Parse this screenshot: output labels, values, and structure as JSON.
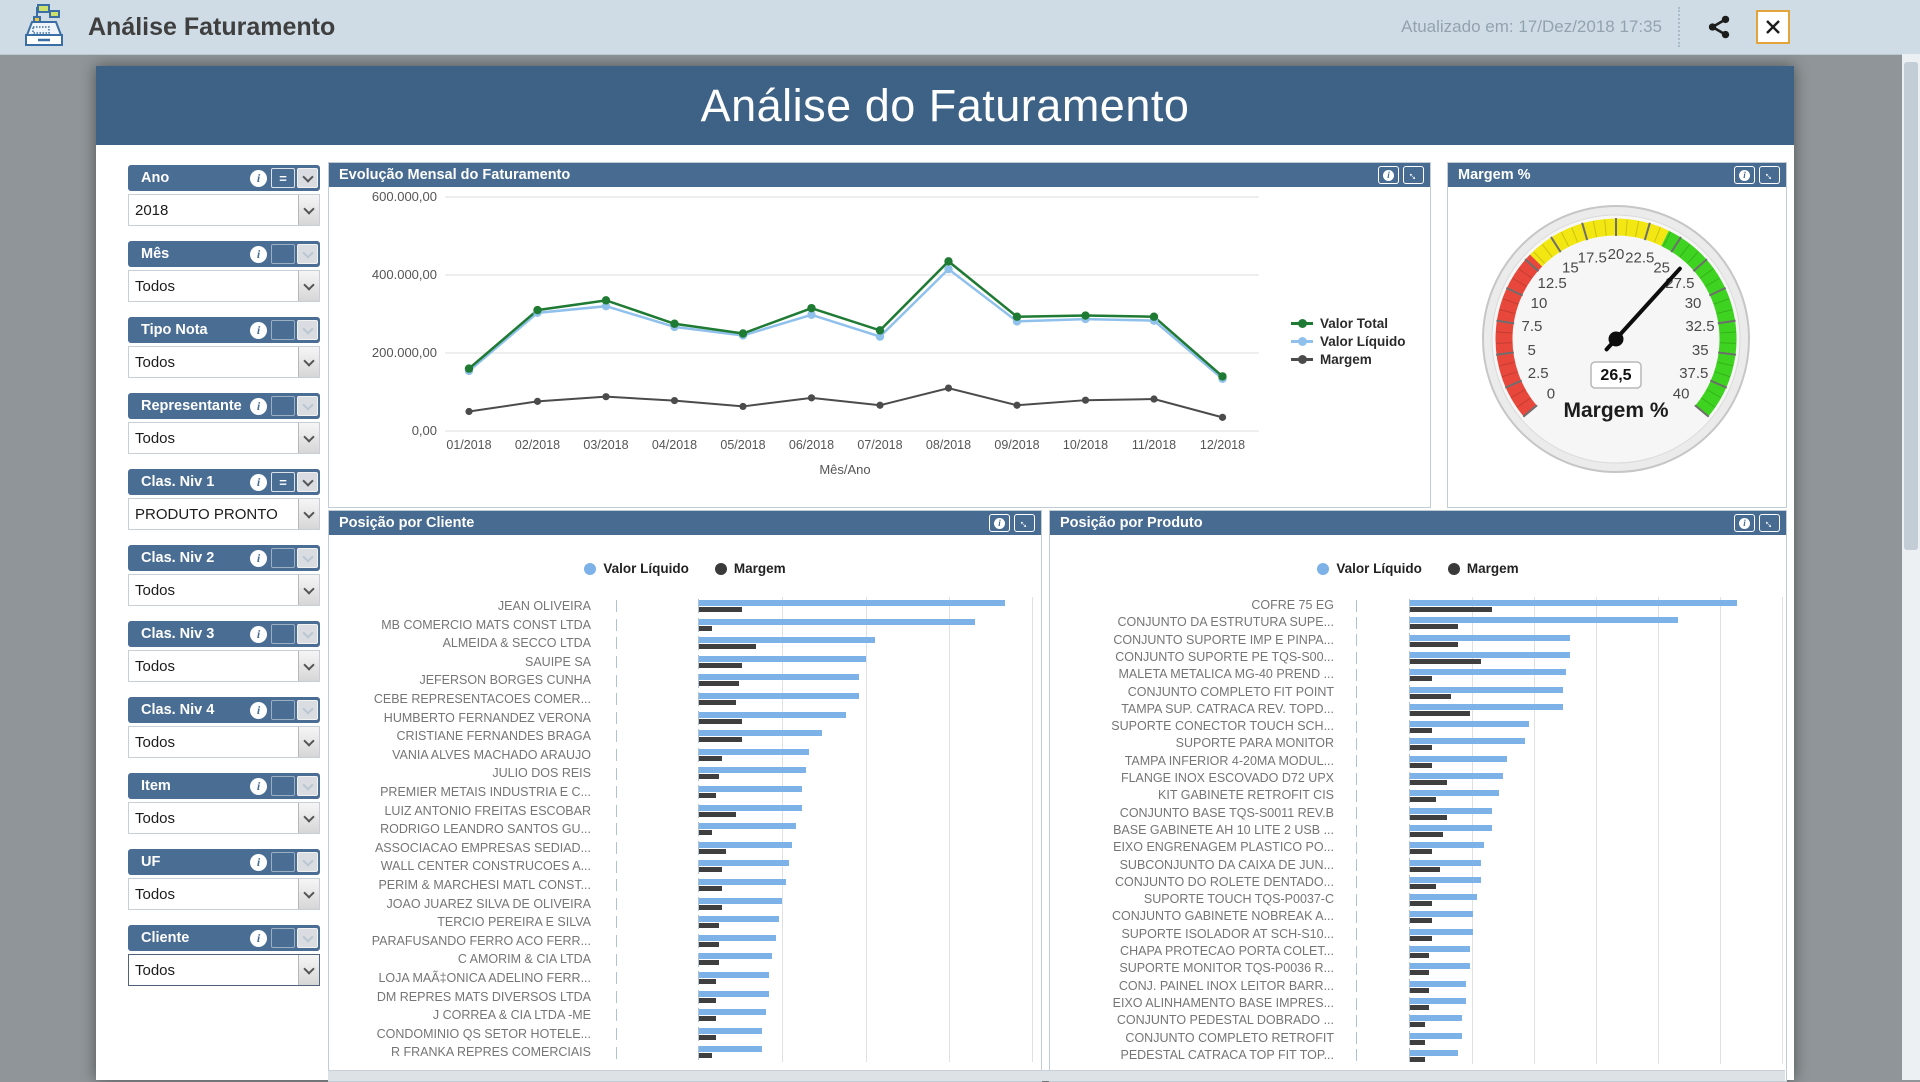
{
  "topbar": {
    "title": "Análise Faturamento",
    "updated": "Atualizado em: 17/Dez/2018 17:35",
    "icons": [
      "cash-register-icon",
      "share-icon",
      "close-icon"
    ]
  },
  "page": {
    "title": "Análise do Faturamento"
  },
  "filters": [
    {
      "label": "Ano",
      "value": "2018",
      "operator": "=",
      "focused": false
    },
    {
      "label": "Mês",
      "value": "Todos",
      "operator": "",
      "focused": false
    },
    {
      "label": "Tipo Nota",
      "value": "Todos",
      "operator": "",
      "focused": false
    },
    {
      "label": "Representante",
      "value": "Todos",
      "operator": "",
      "focused": false
    },
    {
      "label": "Clas. Niv 1",
      "value": "PRODUTO PRONTO",
      "operator": "=",
      "focused": false
    },
    {
      "label": "Clas. Niv 2",
      "value": "Todos",
      "operator": "",
      "focused": false
    },
    {
      "label": "Clas. Niv 3",
      "value": "Todos",
      "operator": "",
      "focused": false
    },
    {
      "label": "Clas. Niv 4",
      "value": "Todos",
      "operator": "",
      "focused": false
    },
    {
      "label": "Item",
      "value": "Todos",
      "operator": "",
      "focused": false
    },
    {
      "label": "UF",
      "value": "Todos",
      "operator": "",
      "focused": false
    },
    {
      "label": "Cliente",
      "value": "Todos",
      "operator": "",
      "focused": true
    }
  ],
  "chart_data": [
    {
      "type": "line",
      "title": "Evolução Mensal do Faturamento",
      "xlabel": "Mês/Ano",
      "ylim": [
        0,
        600000
      ],
      "grid": true,
      "legend_position": "right",
      "yticks": [
        {
          "v": 600000,
          "label": "600.000,00"
        },
        {
          "v": 400000,
          "label": "400.000,00"
        },
        {
          "v": 200000,
          "label": "200.000,00"
        },
        {
          "v": 0,
          "label": "0,00"
        }
      ],
      "x": [
        "01/2018",
        "02/2018",
        "03/2018",
        "04/2018",
        "05/2018",
        "06/2018",
        "07/2018",
        "08/2018",
        "09/2018",
        "10/2018",
        "11/2018",
        "12/2018"
      ],
      "series": [
        {
          "name": "Valor Total",
          "color": "#1f7a33",
          "values": [
            160000,
            310000,
            335000,
            275000,
            250000,
            315000,
            258000,
            435000,
            293000,
            296000,
            293000,
            140000
          ]
        },
        {
          "name": "Valor Líquido",
          "color": "#90c1ec",
          "values": [
            154000,
            303000,
            320000,
            267000,
            245000,
            298000,
            242000,
            415000,
            281000,
            287000,
            283000,
            134000
          ]
        },
        {
          "name": "Margem",
          "color": "#4b4b4b",
          "values": [
            50000,
            76000,
            88000,
            78000,
            63000,
            85000,
            66000,
            110000,
            66000,
            79000,
            82000,
            35000
          ]
        }
      ]
    },
    {
      "type": "gauge",
      "title": "Margem %",
      "label": "Margem %",
      "value": 26.5,
      "value_display": "26,5",
      "min": 0,
      "max": 40,
      "tick_step": 2.5,
      "zones": [
        {
          "from": 0,
          "to": 13,
          "color": "#e8483b"
        },
        {
          "from": 13,
          "to": 24,
          "color": "#f2e713"
        },
        {
          "from": 24,
          "to": 40,
          "color": "#3fd321"
        }
      ]
    },
    {
      "type": "bar",
      "title": "Posição por Cliente",
      "orientation": "horizontal",
      "note": "values are percent of unlabeled value axis (gridlines every 25)",
      "series": [
        {
          "name": "Valor Líquido",
          "color": "#7cb2e8"
        },
        {
          "name": "Margem",
          "color": "#3f3f3f"
        }
      ],
      "categories": [
        "JEAN OLIVEIRA",
        "MB COMERCIO MATS CONST LTDA",
        "ALMEIDA & SECCO LTDA",
        "SAUIPE SA",
        "JEFERSON BORGES CUNHA",
        "CEBE REPRESENTACOES COMER...",
        "HUMBERTO FERNANDEZ VERONA",
        "CRISTIANE FERNANDES BRAGA",
        "VANIA ALVES MACHADO ARAUJO",
        "JULIO DOS REIS",
        "PREMIER METAIS INDUSTRIA E C...",
        "LUIZ ANTONIO FREITAS ESCOBAR",
        "RODRIGO LEANDRO SANTOS GU...",
        "ASSOCIACAO EMPRESAS SEDIAD...",
        "WALL CENTER CONSTRUCOES A...",
        "PERIM & MARCHESI MATL CONST...",
        "JOAO JUAREZ SILVA DE OLIVEIRA",
        "TERCIO PEREIRA E SILVA",
        "PARAFUSANDO FERRO ACO FERR...",
        "C AMORIM & CIA LTDA",
        "LOJA MAÃ‡ONICA ADELINO FERR...",
        "DM REPRES MATS DIVERSOS LTDA",
        "J CORREA & CIA LTDA -ME",
        "CONDOMINIO QS SETOR HOTELE...",
        "R FRANKA REPRES COMERCIAIS"
      ],
      "valor_liquido": [
        92,
        83,
        53,
        50,
        48,
        48,
        44,
        37,
        33,
        32,
        31,
        31,
        29,
        28,
        27,
        26,
        25,
        24,
        23,
        22,
        21,
        21,
        20,
        19,
        19
      ],
      "margem": [
        13,
        4,
        17,
        13,
        12,
        11,
        13,
        13,
        7,
        6,
        5,
        11,
        4,
        8,
        7,
        7,
        7,
        6,
        6,
        6,
        5,
        5,
        5,
        5,
        4
      ]
    },
    {
      "type": "bar",
      "title": "Posição por Produto",
      "orientation": "horizontal",
      "note": "values are percent of unlabeled value axis (gridlines every 16.7)",
      "series": [
        {
          "name": "Valor Líquido",
          "color": "#7cb2e8"
        },
        {
          "name": "Margem",
          "color": "#3f3f3f"
        }
      ],
      "categories": [
        "COFRE 75 EG",
        "CONJUNTO DA ESTRUTURA SUPE...",
        "CONJUNTO SUPORTE IMP E PINPA...",
        "CONJUNTO SUPORTE PE TQS-S00...",
        "MALETA METALICA MG-40 PREND ...",
        "CONJUNTO COMPLETO FIT POINT",
        "TAMPA SUP. CATRACA REV. TOPD...",
        "SUPORTE CONECTOR TOUCH SCH...",
        "SUPORTE PARA MONITOR",
        "TAMPA INFERIOR 4-20MA MODUL...",
        "FLANGE INOX ESCOVADO D72 UPX",
        "KIT GABINETE RETROFIT CIS",
        "CONJUNTO BASE TQS-S0011 REV.B",
        "BASE GABINETE AH 10 LITE 2 USB ...",
        "EIXO ENGRENAGEM PLASTICO PO...",
        "SUBCONJUNTO DA CAIXA DE JUN...",
        "CONJUNTO DO ROLETE DENTADO...",
        "SUPORTE TOUCH TQS-P0037-C",
        "CONJUNTO GABINETE NOBREAK A...",
        "SUPORTE ISOLADOR AT SCH-S10...",
        "CHAPA PROTECAO PORTA COLET...",
        "SUPORTE MONITOR TQS-P0036 R...",
        "CONJ. PAINEL INOX LEITOR BARR...",
        "EIXO ALINHAMENTO BASE IMPRES...",
        "CONJUNTO PEDESTAL DOBRADO ...",
        "CONJUNTO COMPLETO RETROFIT",
        "PEDESTAL CATRACA TOP FIT TOP..."
      ],
      "valor_liquido": [
        88,
        72,
        43,
        43,
        42,
        41,
        41,
        32,
        31,
        26,
        25,
        24,
        22,
        22,
        20,
        19,
        19,
        18,
        17,
        17,
        16,
        16,
        15,
        15,
        14,
        14,
        13
      ],
      "margem": [
        22,
        13,
        13,
        19,
        6,
        11,
        16,
        6,
        6,
        6,
        10,
        7,
        10,
        9,
        6,
        8,
        7,
        6,
        6,
        6,
        5,
        5,
        5,
        5,
        4,
        4,
        4
      ]
    }
  ]
}
